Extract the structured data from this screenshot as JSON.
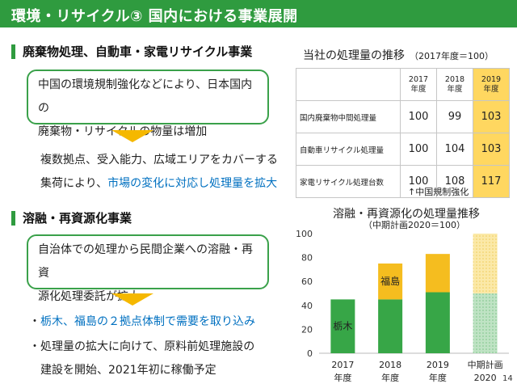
{
  "title": "環境・リサイクル③ 国内における事業展開",
  "section1": {
    "heading": "廃棄物処理、自動車・家電リサイクル事業",
    "box_lines": [
      "中国の環境規制強化などにより、日本国内の",
      "廃棄物・リサイクルの物量は増加"
    ],
    "text_line1": "複数拠点、受入能力、広域エリアをカバーする",
    "text_line2_plain": "集荷により、",
    "text_line2_highlight": "市場の変化に対応し処理量を拡大"
  },
  "section2": {
    "heading": "溶融・再資源化事業",
    "box_lines": [
      "自治体での処理から民間企業への溶融・再資",
      "源化処理委託が拡大"
    ],
    "bullet1_dot": "・",
    "bullet1_text": "栃木、福島の２拠点体制で需要を取り込み",
    "bullet2_line1": "・処理量の拡大に向けて、原料前処理施設の",
    "bullet2_line2": "建設を開始、2021年初に稼働予定"
  },
  "table_section": {
    "title": "当社の処理量の推移",
    "subtitle": "（2017年度＝100）",
    "columns": [
      {
        "year": "2017",
        "unit": "年度"
      },
      {
        "year": "2018",
        "unit": "年度"
      },
      {
        "year": "2019",
        "unit": "年度"
      }
    ],
    "rows": [
      {
        "label": "国内廃棄物中間処理量",
        "values": [
          "100",
          "99",
          "103"
        ]
      },
      {
        "label": "自動車リサイクル処理量",
        "values": [
          "100",
          "104",
          "103"
        ]
      },
      {
        "label": "家電リサイクル処理台数",
        "values": [
          "100",
          "108",
          "117"
        ]
      }
    ],
    "note": "↑中国規制強化",
    "highlight_color": "#ffd760"
  },
  "chart_title": "溶融・再資源化の処理量推移",
  "chart_subtitle": "（中期計画2020＝100）",
  "chart_data": {
    "type": "bar",
    "stacked": true,
    "categories": [
      {
        "line1": "2017",
        "line2": "年度"
      },
      {
        "line1": "2018",
        "line2": "年度"
      },
      {
        "line1": "2019",
        "line2": "年度"
      },
      {
        "line1": "中期計画",
        "line2": "2020"
      }
    ],
    "series": [
      {
        "name": "栃木",
        "color": "#37a647",
        "values": [
          45,
          45,
          51,
          50
        ]
      },
      {
        "name": "福島",
        "color": "#f5bd1f",
        "values": [
          0,
          30,
          32,
          50
        ]
      }
    ],
    "projected_category_index": 3,
    "ylim": [
      0,
      100
    ],
    "yticks": [
      0,
      20,
      40,
      60,
      80,
      100
    ]
  },
  "page_number": "14"
}
